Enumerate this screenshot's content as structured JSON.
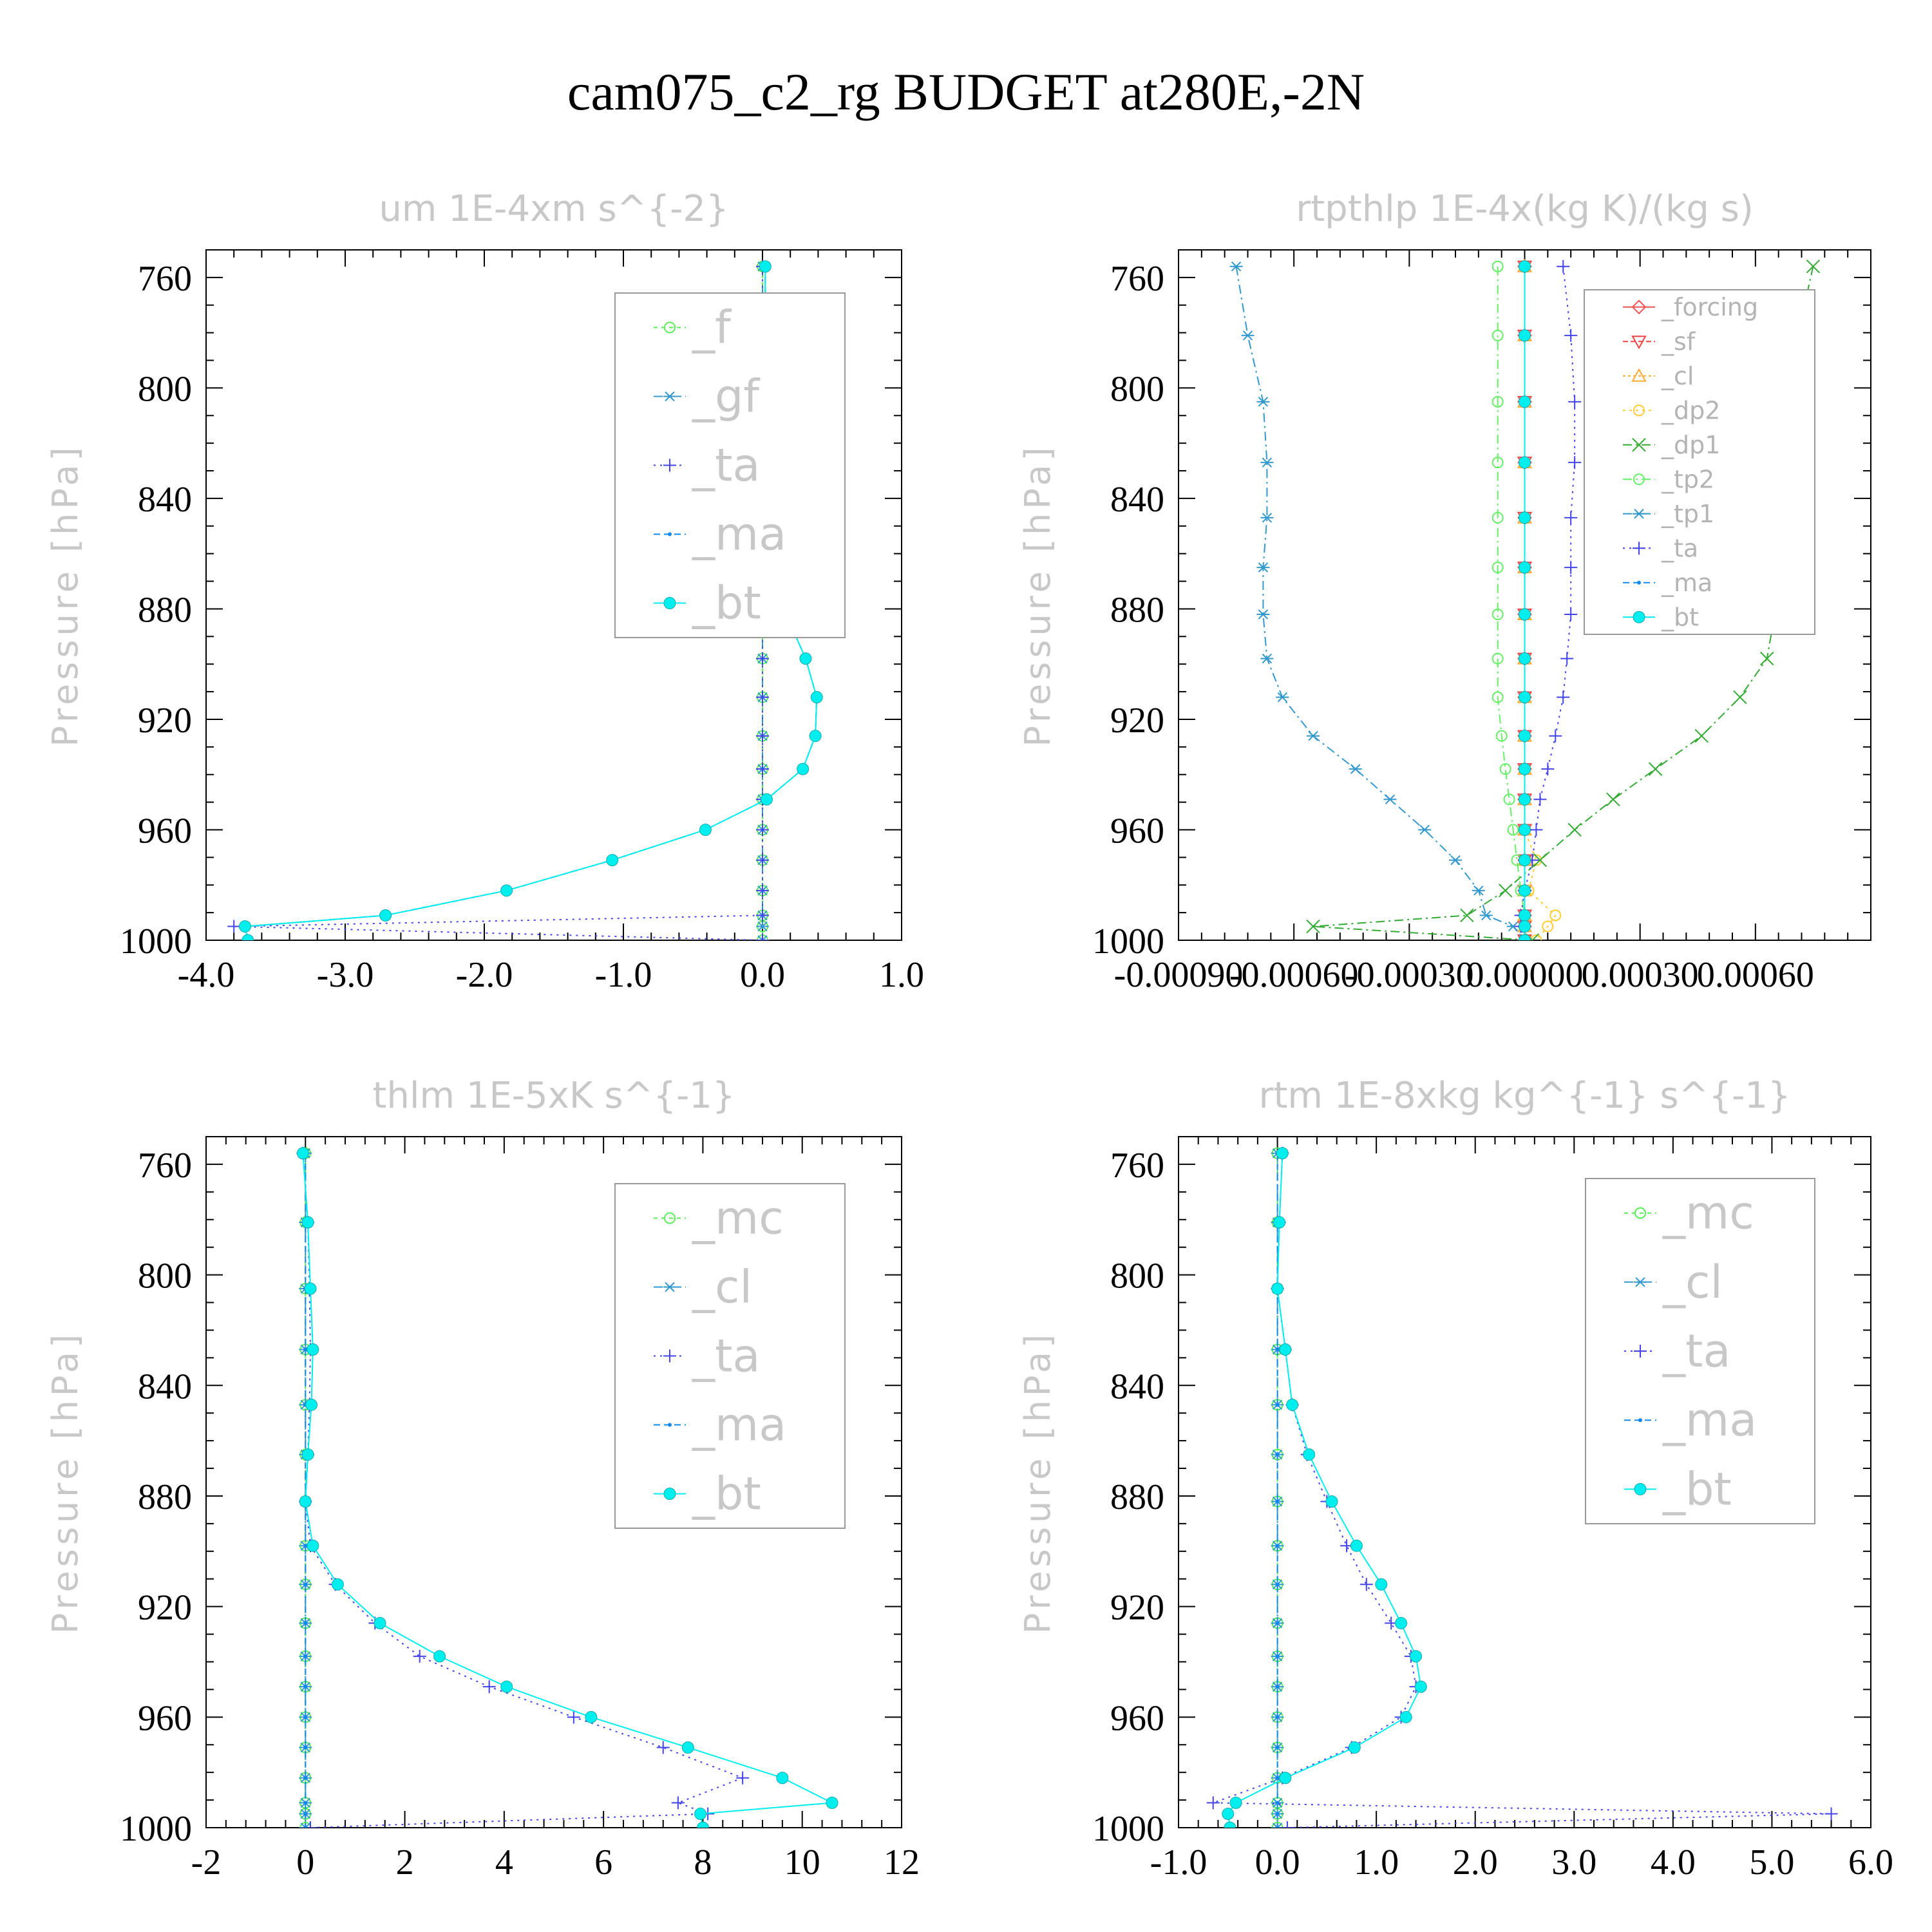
{
  "figure": {
    "title": "cam075_c2_rg  BUDGET at280E,-2N"
  },
  "chart_data": [
    {
      "type": "line",
      "title": "um   1E-4xm s^{-2}",
      "ylabel": "Pressure [hPa]",
      "xlim": [
        -4.0,
        1.0
      ],
      "ylim": [
        1000,
        750
      ],
      "y_inverted": true,
      "xticks": [
        -4.0,
        -3.0,
        -2.0,
        -1.0,
        0.0,
        1.0
      ],
      "xtick_labels": [
        "-4.0",
        "-3.0",
        "-2.0",
        "-1.0",
        "0.0",
        "1.0"
      ],
      "yticks": [
        760,
        800,
        840,
        880,
        920,
        960,
        1000
      ],
      "legend_position": "top-right",
      "legend_style": "big",
      "pressure": [
        756,
        781,
        805,
        827,
        847,
        865,
        882,
        898,
        912,
        926,
        938,
        949,
        960,
        971,
        982,
        991,
        995,
        1000
      ],
      "series": [
        {
          "name": "_f",
          "color": "#55ee55",
          "marker": "circle-open",
          "dash": "6,6",
          "values": [
            0,
            0,
            0,
            0,
            0,
            0,
            0,
            0,
            0,
            0,
            0,
            0,
            0,
            0,
            0,
            0,
            0,
            0
          ]
        },
        {
          "name": "_gf",
          "color": "#3399cc",
          "marker": "asterisk",
          "dash": "14,6,3,6",
          "values": [
            0,
            0,
            0,
            0,
            0,
            0,
            0,
            0,
            0,
            0,
            0,
            0,
            0,
            0,
            0,
            0,
            0,
            0
          ]
        },
        {
          "name": "_ta",
          "color": "#4444ee",
          "marker": "plus",
          "dash": "3,7",
          "values": [
            0,
            0,
            0,
            0,
            0,
            0,
            0,
            0,
            0,
            0,
            0,
            0,
            0,
            0,
            0,
            0,
            -3.8,
            0
          ]
        },
        {
          "name": "_ma",
          "color": "#1188ee",
          "marker": "dot",
          "dash": "10,6",
          "values": [
            0.02,
            0.02,
            0.03,
            0.04,
            0.05,
            0.08,
            0.17,
            0.31,
            0.39,
            0.38,
            0.29,
            0.03,
            -0.41,
            -1.08,
            -1.84,
            -2.71,
            -3.72,
            -3.7
          ]
        },
        {
          "name": "_bt",
          "color": "#00eeee",
          "marker": "filled-circle",
          "dash": "",
          "values": [
            0.02,
            0.02,
            0.03,
            0.04,
            0.05,
            0.08,
            0.17,
            0.31,
            0.39,
            0.38,
            0.29,
            0.03,
            -0.41,
            -1.08,
            -1.84,
            -2.71,
            -3.72,
            -3.7
          ]
        }
      ]
    },
    {
      "type": "line",
      "title": "rtpthlp   1E-4x(kg K)/(kg s)",
      "ylabel": "Pressure [hPa]",
      "xlim": [
        -0.0009,
        0.0009
      ],
      "ylim": [
        1000,
        750
      ],
      "y_inverted": true,
      "xticks": [
        -0.0009,
        -0.0006,
        -0.0003,
        0.0,
        0.0003,
        0.0006
      ],
      "xtick_labels": [
        "-0.00090",
        "-0.00060",
        "-0.00030",
        "0.00000",
        "0.00030",
        "0.00060"
      ],
      "yticks": [
        760,
        800,
        840,
        880,
        920,
        960,
        1000
      ],
      "legend_position": "top-right",
      "legend_style": "small",
      "pressure": [
        756,
        781,
        805,
        827,
        847,
        865,
        882,
        898,
        912,
        926,
        938,
        949,
        960,
        971,
        982,
        991,
        995,
        1000
      ],
      "series": [
        {
          "name": "_forcing",
          "color": "#ee5555",
          "marker": "diamond",
          "dash": "",
          "values": [
            0,
            0,
            0,
            0,
            0,
            0,
            0,
            0,
            0,
            0,
            0,
            0,
            0,
            0,
            0,
            0,
            0,
            0
          ]
        },
        {
          "name": "_sf",
          "color": "#ee4444",
          "marker": "triangle-down",
          "dash": "8,4",
          "values": [
            0,
            0,
            0,
            0,
            0,
            0,
            0,
            0,
            0,
            0,
            0,
            0,
            0,
            0,
            0,
            0,
            0,
            0
          ]
        },
        {
          "name": "_cl",
          "color": "#ffaa33",
          "marker": "triangle-up",
          "dash": "4,4",
          "values": [
            0,
            0,
            0,
            0,
            0,
            0,
            0,
            0,
            0,
            0,
            0,
            0,
            0,
            0,
            0,
            0,
            0,
            0
          ]
        },
        {
          "name": "_dp2",
          "color": "#ffcc33",
          "marker": "circle-open",
          "dash": "4,6",
          "values": [
            0,
            0,
            0,
            0,
            0,
            0,
            0,
            0,
            0,
            0,
            0,
            0,
            0,
            3e-05,
            1e-05,
            8e-05,
            6e-05,
            3e-05
          ]
        },
        {
          "name": "_dp1",
          "color": "#33aa33",
          "marker": "x",
          "dash": "14,6,3,6",
          "values": [
            0.00075,
            0.00071,
            0.00066,
            0.00064,
            0.00064,
            0.00065,
            0.00065,
            0.00063,
            0.00056,
            0.00046,
            0.00034,
            0.00023,
            0.00013,
            4e-05,
            -5e-05,
            -0.00015,
            -0.00055,
            2e-05
          ]
        },
        {
          "name": "_tp2",
          "color": "#66ee66",
          "marker": "circle-open",
          "dash": "14,6,3,6",
          "values": [
            -7e-05,
            -7e-05,
            -7e-05,
            -7e-05,
            -7e-05,
            -7e-05,
            -7e-05,
            -7e-05,
            -7e-05,
            -6e-05,
            -5e-05,
            -4e-05,
            -3e-05,
            -2e-05,
            -1e-05,
            0,
            0,
            0
          ]
        },
        {
          "name": "_tp1",
          "color": "#3399cc",
          "marker": "asterisk",
          "dash": "14,6,3,6",
          "values": [
            -0.00075,
            -0.00072,
            -0.00068,
            -0.00067,
            -0.00067,
            -0.00068,
            -0.00068,
            -0.00067,
            -0.00063,
            -0.00055,
            -0.00044,
            -0.00035,
            -0.00026,
            -0.00018,
            -0.00012,
            -0.0001,
            -3e-05,
            0
          ]
        },
        {
          "name": "_ta",
          "color": "#4444ee",
          "marker": "plus",
          "dash": "3,7",
          "values": [
            0.0001,
            0.00012,
            0.00013,
            0.00013,
            0.00012,
            0.00012,
            0.00012,
            0.00011,
            0.0001,
            8e-05,
            6e-05,
            4e-05,
            3e-05,
            2e-05,
            0,
            -1e-05,
            -1e-05,
            0
          ]
        },
        {
          "name": "_ma",
          "color": "#1188ee",
          "marker": "dot",
          "dash": "10,6",
          "values": [
            0,
            0,
            0,
            0,
            0,
            0,
            0,
            0,
            0,
            0,
            0,
            0,
            0,
            0,
            0,
            0,
            0,
            0
          ]
        },
        {
          "name": "_bt",
          "color": "#00eeee",
          "marker": "filled-circle",
          "dash": "",
          "values": [
            0,
            0,
            0,
            0,
            0,
            0,
            0,
            0,
            0,
            0,
            0,
            0,
            0,
            0,
            0,
            0,
            0,
            0
          ]
        }
      ]
    },
    {
      "type": "line",
      "title": "thlm   1E-5xK s^{-1}",
      "ylabel": "Pressure [hPa]",
      "xlim": [
        -2,
        12
      ],
      "ylim": [
        1000,
        750
      ],
      "y_inverted": true,
      "xticks": [
        -2,
        0,
        2,
        4,
        6,
        8,
        10,
        12
      ],
      "xtick_labels": [
        "-2",
        "0",
        "2",
        "4",
        "6",
        "8",
        "10",
        "12"
      ],
      "yticks": [
        760,
        800,
        840,
        880,
        920,
        960,
        1000
      ],
      "legend_position": "top-right",
      "legend_style": "big",
      "pressure": [
        756,
        781,
        805,
        827,
        847,
        865,
        882,
        898,
        912,
        926,
        938,
        949,
        960,
        971,
        982,
        991,
        995,
        1000
      ],
      "series": [
        {
          "name": "_mc",
          "color": "#55ee55",
          "marker": "circle-open",
          "dash": "6,6",
          "values": [
            0,
            0,
            0,
            0,
            0,
            0,
            0,
            0,
            0,
            0,
            0,
            0,
            0,
            0,
            0,
            0,
            0,
            0
          ]
        },
        {
          "name": "_cl",
          "color": "#3399cc",
          "marker": "asterisk",
          "dash": "14,6,3,6",
          "values": [
            0,
            0,
            0,
            0,
            0,
            0,
            0,
            0,
            0,
            0,
            0,
            0,
            0,
            0,
            0,
            0,
            0,
            0
          ]
        },
        {
          "name": "_ta",
          "color": "#4444ee",
          "marker": "plus",
          "dash": "3,7",
          "values": [
            -0.05,
            0.05,
            0.08,
            0.1,
            0.08,
            0.05,
            0,
            0.1,
            0.6,
            1.4,
            2.3,
            3.7,
            5.4,
            7.2,
            8.8,
            7.5,
            8.1,
            0.1
          ]
        },
        {
          "name": "_ma",
          "color": "#1188ee",
          "marker": "dot",
          "dash": "10,6",
          "values": [
            0,
            0,
            0,
            0,
            0,
            0,
            0,
            0,
            0,
            0,
            0,
            0,
            0,
            0,
            0,
            0,
            0,
            0
          ]
        },
        {
          "name": "_bt",
          "color": "#00eeee",
          "marker": "filled-circle",
          "dash": "",
          "values": [
            -0.05,
            0.05,
            0.1,
            0.15,
            0.12,
            0.05,
            0,
            0.15,
            0.65,
            1.5,
            2.7,
            4.05,
            5.75,
            7.7,
            9.6,
            10.6,
            7.95,
            8.0
          ]
        }
      ]
    },
    {
      "type": "line",
      "title": "rtm   1E-8xkg kg^{-1} s^{-1}",
      "ylabel": "Pressure [hPa]",
      "xlim": [
        -1.0,
        6.0
      ],
      "ylim": [
        1000,
        750
      ],
      "y_inverted": true,
      "xticks": [
        -1.0,
        0.0,
        1.0,
        2.0,
        3.0,
        4.0,
        5.0,
        6.0
      ],
      "xtick_labels": [
        "-1.0",
        "0.0",
        "1.0",
        "2.0",
        "3.0",
        "4.0",
        "5.0",
        "6.0"
      ],
      "yticks": [
        760,
        800,
        840,
        880,
        920,
        960,
        1000
      ],
      "legend_position": "top-right",
      "legend_style": "big",
      "pressure": [
        756,
        781,
        805,
        827,
        847,
        865,
        882,
        898,
        912,
        926,
        938,
        949,
        960,
        971,
        982,
        991,
        995,
        1000
      ],
      "series": [
        {
          "name": "_mc",
          "color": "#55ee55",
          "marker": "circle-open",
          "dash": "6,6",
          "values": [
            0,
            0,
            0,
            0,
            0,
            0,
            0,
            0,
            0,
            0,
            0,
            0,
            0,
            0,
            0,
            0,
            0,
            0
          ]
        },
        {
          "name": "_cl",
          "color": "#3399cc",
          "marker": "asterisk",
          "dash": "14,6,3,6",
          "values": [
            0,
            0,
            0,
            0,
            0,
            0,
            0,
            0,
            0,
            0,
            0,
            0,
            0,
            0,
            0,
            0,
            0,
            0
          ]
        },
        {
          "name": "_ta",
          "color": "#4444ee",
          "marker": "plus",
          "dash": "3,7",
          "values": [
            0.05,
            0.02,
            0.0,
            0.08,
            0.15,
            0.3,
            0.5,
            0.7,
            0.9,
            1.15,
            1.35,
            1.4,
            1.25,
            0.75,
            0.05,
            -0.65,
            5.6,
            0.1
          ]
        },
        {
          "name": "_ma",
          "color": "#1188ee",
          "marker": "dot",
          "dash": "10,6",
          "values": [
            0,
            0,
            0,
            0,
            0,
            0,
            0,
            0,
            0,
            0,
            0,
            0,
            0,
            0,
            0,
            0,
            0,
            0
          ]
        },
        {
          "name": "_bt",
          "color": "#00eeee",
          "marker": "filled-circle",
          "dash": "",
          "values": [
            0.05,
            0.02,
            0.0,
            0.08,
            0.15,
            0.32,
            0.55,
            0.8,
            1.05,
            1.25,
            1.4,
            1.45,
            1.3,
            0.78,
            0.08,
            -0.42,
            -0.5,
            -0.48
          ]
        }
      ]
    }
  ]
}
